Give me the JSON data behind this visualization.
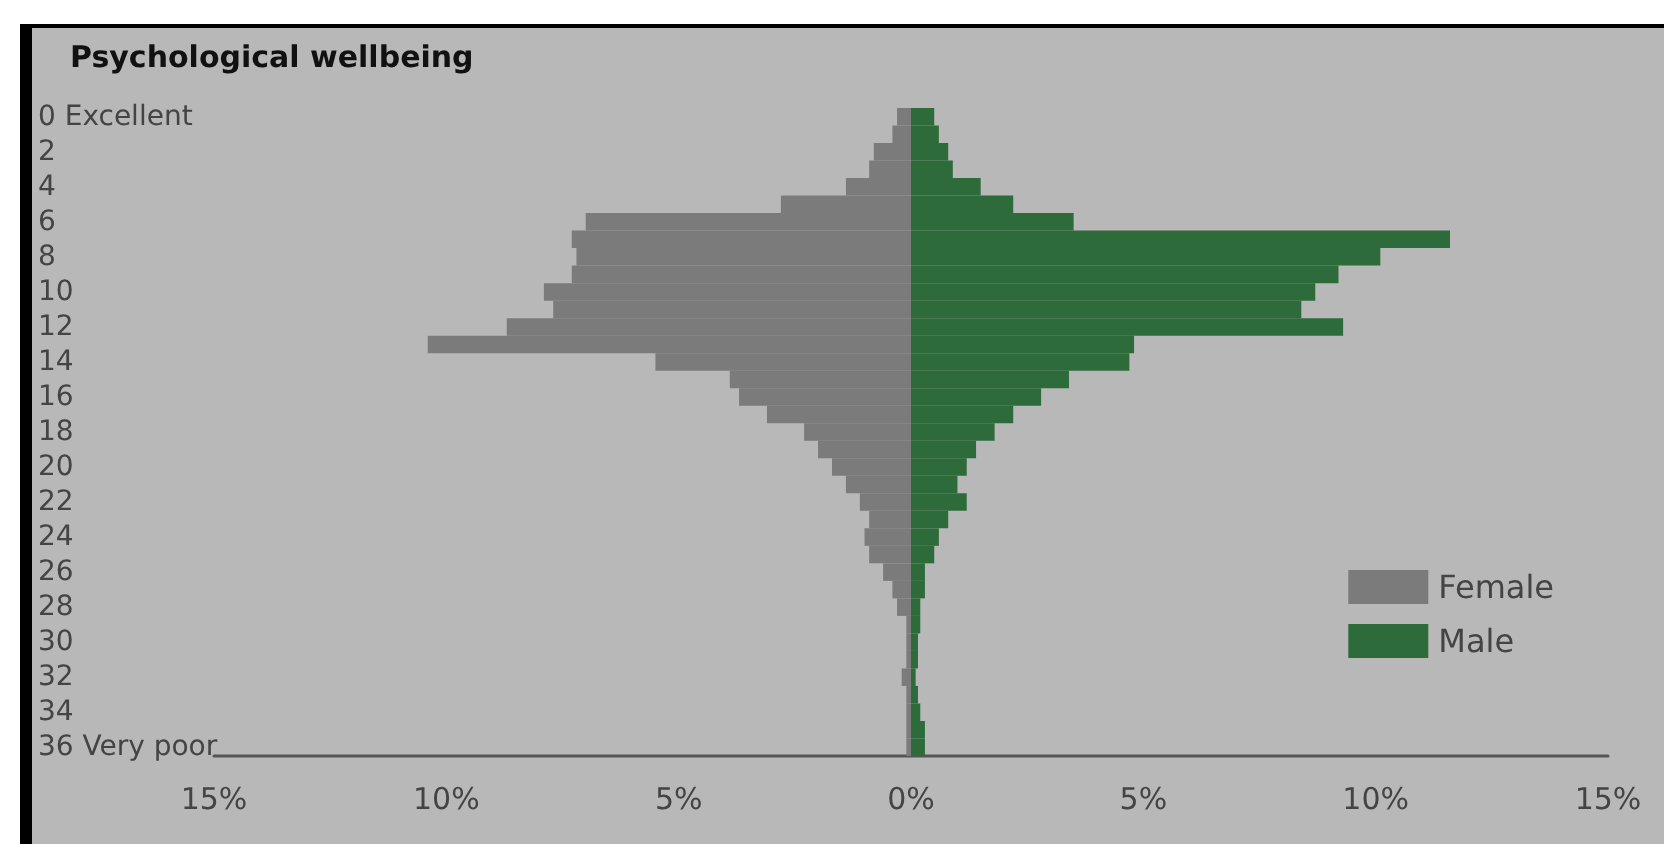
{
  "chart_data": {
    "type": "bar",
    "title": "Psychological wellbeing",
    "orientation": "horizontal",
    "stacked": true,
    "categories": [
      "0 Excellent",
      null,
      "2",
      null,
      "4",
      null,
      "6",
      null,
      "8",
      null,
      "10",
      null,
      "12",
      null,
      "14",
      null,
      "16",
      null,
      "18",
      null,
      "20",
      null,
      "22",
      null,
      "24",
      null,
      "26",
      null,
      "28",
      null,
      "30",
      null,
      "32",
      null,
      "34",
      null,
      "36 Very poor"
    ],
    "series": [
      {
        "name": "Female",
        "color": "#7a7b7a",
        "values": [
          -0.3,
          -0.4,
          -0.8,
          -0.9,
          -1.4,
          -2.8,
          -7.0,
          -7.3,
          -7.2,
          -7.3,
          -7.9,
          -7.7,
          -8.7,
          -10.4,
          -5.5,
          -3.9,
          -3.7,
          -3.1,
          -2.3,
          -2.0,
          -1.7,
          -1.4,
          -1.1,
          -0.9,
          -1.0,
          -0.9,
          -0.6,
          -0.4,
          -0.3,
          -0.1,
          -0.1,
          -0.1,
          -0.2,
          -0.1,
          -0.1,
          -0.1,
          -0.1
        ]
      },
      {
        "name": "Male",
        "color": "#2e6b3a",
        "values": [
          0.5,
          0.6,
          0.8,
          0.9,
          1.5,
          2.2,
          3.5,
          11.6,
          10.1,
          9.2,
          8.7,
          8.4,
          9.3,
          4.8,
          4.7,
          3.4,
          2.8,
          2.2,
          1.8,
          1.4,
          1.2,
          1.0,
          1.2,
          0.8,
          0.6,
          0.5,
          0.3,
          0.3,
          0.2,
          0.2,
          0.15,
          0.15,
          0.1,
          0.15,
          0.2,
          0.3,
          0.3
        ]
      }
    ],
    "xlim": [
      -15,
      15
    ],
    "xticks": [
      {
        "value": -15,
        "label": "15%"
      },
      {
        "value": -10,
        "label": "10%"
      },
      {
        "value": -5,
        "label": "5%"
      },
      {
        "value": 0,
        "label": "0%"
      },
      {
        "value": 5,
        "label": "5%"
      },
      {
        "value": 10,
        "label": "10%"
      },
      {
        "value": 15,
        "label": "15%"
      }
    ],
    "grid": false,
    "legend": "bottom right"
  }
}
